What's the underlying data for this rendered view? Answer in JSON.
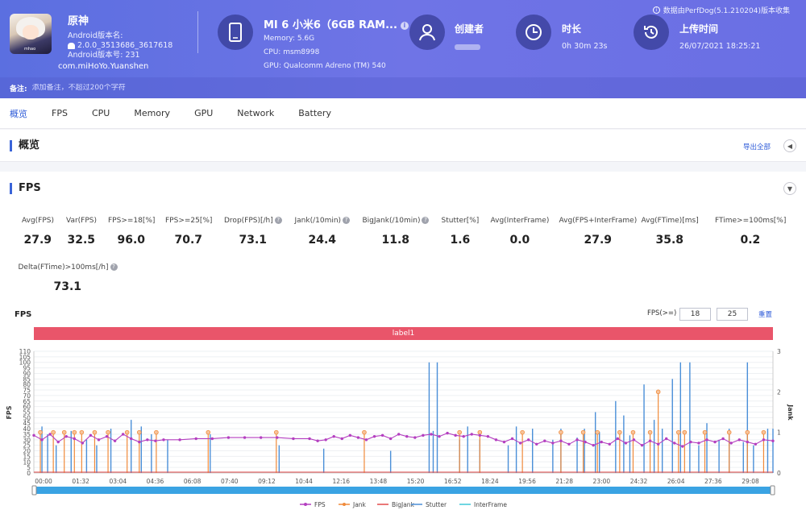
{
  "app": {
    "name": "原神",
    "android_version_name": "Android版本名:",
    "android_version_value": "2.0.0_3513686_3617618",
    "android_version_code": "Android版本号: 231",
    "package": "com.miHoYo.Yuanshen",
    "icon_tag": "mhao"
  },
  "device": {
    "title": "MI 6 小米6（6GB RAM...",
    "info_glyph": "i",
    "memory": "Memory: 5.6G",
    "cpu": "CPU: msm8998",
    "gpu": "GPU: Qualcomm Adreno (TM) 540"
  },
  "creator": {
    "title": "创建者"
  },
  "duration": {
    "title": "时长",
    "value": "0h 30m 23s"
  },
  "upload": {
    "title": "上传时间",
    "value": "26/07/2021 18:25:21"
  },
  "source_note": "数据由PerfDog(5.1.210204)版本收集",
  "note": {
    "label": "备注:",
    "placeholder": "添加备注，不超过200个字符"
  },
  "tabs": [
    "概览",
    "FPS",
    "CPU",
    "Memory",
    "GPU",
    "Network",
    "Battery"
  ],
  "overview": {
    "title": "概览",
    "export": "导出全部"
  },
  "fps_panel": {
    "title": "FPS"
  },
  "stats": [
    {
      "label": "Avg(FPS)",
      "value": "27.9",
      "help": false
    },
    {
      "label": "Var(FPS)",
      "value": "32.5",
      "help": false
    },
    {
      "label": "FPS>=18[%]",
      "value": "96.0",
      "help": false
    },
    {
      "label": "FPS>=25[%]",
      "value": "70.7",
      "help": false
    },
    {
      "label": "Drop(FPS)[/h]",
      "value": "73.1",
      "help": true
    },
    {
      "label": "Jank(/10min)",
      "value": "24.4",
      "help": true
    },
    {
      "label": "BigJank(/10min)",
      "value": "11.8",
      "help": true
    },
    {
      "label": "Stutter[%]",
      "value": "1.6",
      "help": false
    },
    {
      "label": "Avg(InterFrame)",
      "value": "0.0",
      "help": false
    },
    {
      "label": "Avg(FPS+InterFrame)",
      "value": "27.9",
      "help": false
    },
    {
      "label": "Avg(FTime)[ms]",
      "value": "35.8",
      "help": false
    },
    {
      "label": "FTime>=100ms[%]",
      "value": "0.2",
      "help": false
    }
  ],
  "stats_row2": [
    {
      "label": "Delta(FTime)>100ms[/h]",
      "value": "73.1",
      "help": true
    }
  ],
  "chart_controls": {
    "title": "FPS",
    "threshold_label": "FPS(>=)",
    "threshold_1": "18",
    "threshold_2": "25",
    "reset": "重置",
    "label_band": "label1"
  },
  "colors": {
    "fps": "#b43fc0",
    "jank": "#f08a3a",
    "bigjank": "#e24a4a",
    "stutter": "#4a8fd8",
    "interframe": "#3fc8d8",
    "header": "#6a6fe4",
    "band": "#e9556a"
  },
  "chart_data": {
    "type": "line",
    "title": "",
    "ylabel": "FPS",
    "y2label": "Jank",
    "ylim": [
      0,
      110
    ],
    "y2lim": [
      0,
      3
    ],
    "yticks": [
      0,
      5,
      10,
      15,
      20,
      25,
      30,
      35,
      40,
      45,
      50,
      55,
      60,
      65,
      70,
      75,
      80,
      85,
      90,
      95,
      100,
      105,
      110
    ],
    "y2ticks": [
      0,
      1,
      2,
      3
    ],
    "xlim": [
      0,
      1823
    ],
    "xticks": [
      "00:00",
      "01:32",
      "03:04",
      "04:36",
      "06:08",
      "07:40",
      "09:12",
      "10:44",
      "12:16",
      "13:48",
      "15:20",
      "16:52",
      "18:24",
      "19:56",
      "21:28",
      "23:00",
      "24:32",
      "26:04",
      "27:36",
      "29:08"
    ],
    "legend": [
      "FPS",
      "Jank",
      "BigJank",
      "Stutter",
      "InterFrame"
    ],
    "legend_position": "bottom",
    "fps_series": [
      [
        0,
        34
      ],
      [
        20,
        30
      ],
      [
        40,
        35
      ],
      [
        60,
        28
      ],
      [
        80,
        33
      ],
      [
        100,
        31
      ],
      [
        120,
        27
      ],
      [
        140,
        34
      ],
      [
        160,
        30
      ],
      [
        180,
        33
      ],
      [
        200,
        29
      ],
      [
        220,
        35
      ],
      [
        240,
        31
      ],
      [
        260,
        28
      ],
      [
        280,
        30
      ],
      [
        300,
        29
      ],
      [
        320,
        30
      ],
      [
        360,
        30
      ],
      [
        400,
        31
      ],
      [
        440,
        31
      ],
      [
        480,
        32
      ],
      [
        520,
        32
      ],
      [
        560,
        32
      ],
      [
        600,
        32
      ],
      [
        640,
        31
      ],
      [
        680,
        31
      ],
      [
        700,
        29
      ],
      [
        720,
        30
      ],
      [
        740,
        33
      ],
      [
        760,
        31
      ],
      [
        780,
        34
      ],
      [
        800,
        32
      ],
      [
        820,
        30
      ],
      [
        840,
        33
      ],
      [
        860,
        34
      ],
      [
        880,
        31
      ],
      [
        900,
        35
      ],
      [
        920,
        33
      ],
      [
        940,
        32
      ],
      [
        960,
        34
      ],
      [
        980,
        35
      ],
      [
        1000,
        33
      ],
      [
        1020,
        36
      ],
      [
        1040,
        34
      ],
      [
        1060,
        33
      ],
      [
        1080,
        35
      ],
      [
        1100,
        34
      ],
      [
        1120,
        33
      ],
      [
        1140,
        30
      ],
      [
        1160,
        28
      ],
      [
        1180,
        31
      ],
      [
        1200,
        27
      ],
      [
        1220,
        30
      ],
      [
        1240,
        26
      ],
      [
        1260,
        29
      ],
      [
        1280,
        27
      ],
      [
        1300,
        29
      ],
      [
        1320,
        26
      ],
      [
        1340,
        30
      ],
      [
        1360,
        28
      ],
      [
        1380,
        25
      ],
      [
        1400,
        28
      ],
      [
        1420,
        26
      ],
      [
        1440,
        31
      ],
      [
        1460,
        27
      ],
      [
        1480,
        30
      ],
      [
        1500,
        25
      ],
      [
        1520,
        29
      ],
      [
        1540,
        26
      ],
      [
        1560,
        31
      ],
      [
        1580,
        27
      ],
      [
        1600,
        24
      ],
      [
        1620,
        28
      ],
      [
        1640,
        27
      ],
      [
        1660,
        30
      ],
      [
        1680,
        28
      ],
      [
        1700,
        31
      ],
      [
        1720,
        27
      ],
      [
        1740,
        30
      ],
      [
        1760,
        28
      ],
      [
        1780,
        26
      ],
      [
        1800,
        30
      ],
      [
        1823,
        29
      ]
    ],
    "stutter_spikes": [
      [
        20,
        42
      ],
      [
        34,
        35
      ],
      [
        55,
        25
      ],
      [
        92,
        38
      ],
      [
        130,
        30
      ],
      [
        155,
        25
      ],
      [
        190,
        40
      ],
      [
        240,
        48
      ],
      [
        265,
        42
      ],
      [
        290,
        35
      ],
      [
        330,
        30
      ],
      [
        435,
        35
      ],
      [
        605,
        25
      ],
      [
        715,
        22
      ],
      [
        880,
        20
      ],
      [
        975,
        100
      ],
      [
        985,
        38
      ],
      [
        995,
        100
      ],
      [
        1050,
        30
      ],
      [
        1070,
        42
      ],
      [
        1100,
        30
      ],
      [
        1170,
        25
      ],
      [
        1190,
        42
      ],
      [
        1230,
        40
      ],
      [
        1280,
        30
      ],
      [
        1300,
        40
      ],
      [
        1340,
        32
      ],
      [
        1358,
        40
      ],
      [
        1385,
        55
      ],
      [
        1395,
        37
      ],
      [
        1435,
        65
      ],
      [
        1455,
        52
      ],
      [
        1470,
        34
      ],
      [
        1505,
        80
      ],
      [
        1530,
        48
      ],
      [
        1550,
        40
      ],
      [
        1575,
        85
      ],
      [
        1595,
        100
      ],
      [
        1618,
        100
      ],
      [
        1640,
        25
      ],
      [
        1660,
        45
      ],
      [
        1690,
        30
      ],
      [
        1715,
        40
      ],
      [
        1750,
        28
      ],
      [
        1760,
        100
      ],
      [
        1775,
        25
      ],
      [
        1810,
        40
      ],
      [
        1823,
        40
      ]
    ],
    "jank_marks": [
      [
        16,
        1
      ],
      [
        48,
        1
      ],
      [
        75,
        1
      ],
      [
        100,
        1
      ],
      [
        118,
        1
      ],
      [
        150,
        1
      ],
      [
        183,
        1
      ],
      [
        230,
        1
      ],
      [
        260,
        1
      ],
      [
        302,
        1
      ],
      [
        430,
        1
      ],
      [
        598,
        1
      ],
      [
        815,
        1
      ],
      [
        1050,
        1
      ],
      [
        1100,
        1
      ],
      [
        1205,
        1
      ],
      [
        1300,
        1
      ],
      [
        1355,
        1
      ],
      [
        1390,
        1
      ],
      [
        1445,
        1
      ],
      [
        1478,
        1
      ],
      [
        1520,
        1
      ],
      [
        1540,
        2
      ],
      [
        1590,
        1
      ],
      [
        1605,
        1
      ],
      [
        1655,
        1
      ],
      [
        1715,
        1
      ],
      [
        1760,
        1
      ],
      [
        1800,
        1
      ]
    ]
  }
}
